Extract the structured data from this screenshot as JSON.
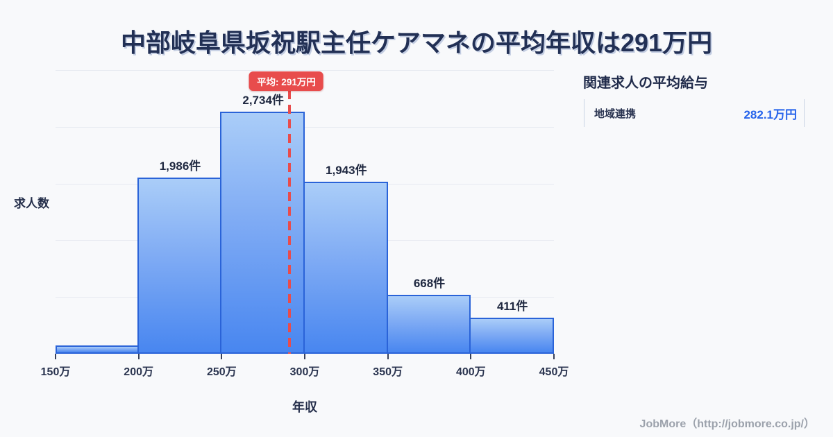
{
  "page": {
    "title": "中部岐阜県坂祝駅主任ケアマネの平均年収は291万円",
    "background_color": "#f8f9fb",
    "footer": "JobMore（http://jobmore.co.jp/）"
  },
  "chart_data": {
    "type": "bar",
    "title": "中部岐阜県坂祝駅主任ケアマネの平均年収は291万円",
    "xlabel": "年収",
    "ylabel": "求人数",
    "x_ticks": [
      "150万",
      "200万",
      "250万",
      "300万",
      "350万",
      "400万",
      "450万"
    ],
    "bins": [
      "150万-200万",
      "200万-250万",
      "250万-300万",
      "300万-350万",
      "350万-400万",
      "400万-450万"
    ],
    "values": [
      94,
      1986,
      2734,
      1943,
      668,
      411
    ],
    "bar_labels": [
      "",
      "1,986件",
      "2,734件",
      "1,943件",
      "668件",
      "411件"
    ],
    "x_range": [
      150,
      450
    ],
    "grid": true,
    "gridline_count": 5,
    "mean_line": {
      "label": "平均: 291万円",
      "value": 291,
      "color": "#e84c4c"
    },
    "colors": {
      "bar_fill_top": "#aacdf8",
      "bar_fill_bottom": "#4886f0",
      "bar_border": "#2a63d8",
      "mean": "#e84c4c",
      "gridline": "#e7eaf1"
    }
  },
  "side_panel": {
    "title": "関連求人の平均給与",
    "rows": [
      {
        "label": "地域連携",
        "value": "282.1万円"
      }
    ],
    "value_color": "#2563eb"
  }
}
